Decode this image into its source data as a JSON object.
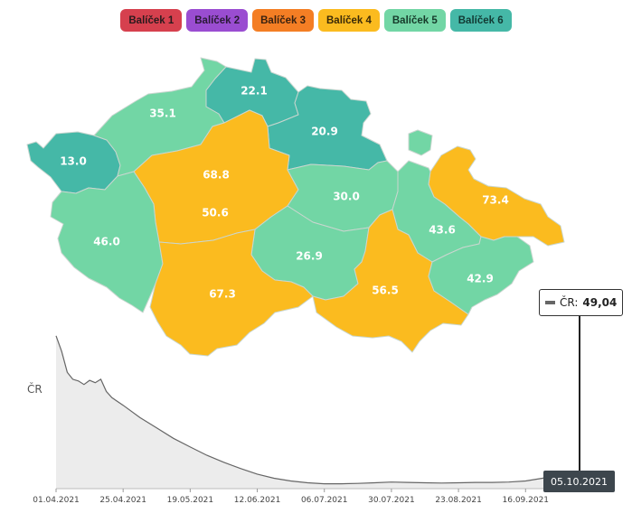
{
  "legend": [
    {
      "label": "Balíček 1",
      "color": "#d6404e",
      "text_color": "#2a1a1d"
    },
    {
      "label": "Balíček 2",
      "color": "#9a4dd1",
      "text_color": "#2a1a36"
    },
    {
      "label": "Balíček 3",
      "color": "#f47e24",
      "text_color": "#3a2210"
    },
    {
      "label": "Balíček 4",
      "color": "#fbbb1f",
      "text_color": "#3a2a08"
    },
    {
      "label": "Balíček 5",
      "color": "#72d6a5",
      "text_color": "#163a2a"
    },
    {
      "label": "Balíček 6",
      "color": "#45b8a7",
      "text_color": "#123a34"
    }
  ],
  "regions": [
    {
      "id": "karlovarsky",
      "value": "13.0",
      "package": 6,
      "color": "#45b8a7"
    },
    {
      "id": "ustecky",
      "value": "35.1",
      "package": 5,
      "color": "#72d6a5"
    },
    {
      "id": "liberecky",
      "value": "22.1",
      "package": 6,
      "color": "#45b8a7"
    },
    {
      "id": "kralovehradecky",
      "value": "20.9",
      "package": 6,
      "color": "#45b8a7"
    },
    {
      "id": "praha",
      "value": "68.8",
      "package": 4,
      "color": "#fbbb1f"
    },
    {
      "id": "stredocesky",
      "value": "50.6",
      "package": 4,
      "color": "#fbbb1f"
    },
    {
      "id": "pardubicky",
      "value": "30.0",
      "package": 5,
      "color": "#72d6a5"
    },
    {
      "id": "moravskoslezsky",
      "value": "73.4",
      "package": 4,
      "color": "#fbbb1f"
    },
    {
      "id": "plzensky",
      "value": "46.0",
      "package": 5,
      "color": "#72d6a5"
    },
    {
      "id": "olomoucky",
      "value": "43.6",
      "package": 5,
      "color": "#72d6a5"
    },
    {
      "id": "vysocina",
      "value": "26.9",
      "package": 5,
      "color": "#72d6a5"
    },
    {
      "id": "jihocesky",
      "value": "67.3",
      "package": 4,
      "color": "#fbbb1f"
    },
    {
      "id": "jihomoravsky",
      "value": "56.5",
      "package": 4,
      "color": "#fbbb1f"
    },
    {
      "id": "zlinsky",
      "value": "42.9",
      "package": 5,
      "color": "#72d6a5"
    }
  ],
  "chart": {
    "series_label": "ČR",
    "x_ticks": [
      "01.04.2021",
      "25.04.2021",
      "19.05.2021",
      "12.06.2021",
      "06.07.2021",
      "30.07.2021",
      "23.08.2021",
      "16.09.2021"
    ],
    "tooltip_label": "ČR:",
    "tooltip_value": "49,04",
    "current_date": "05.10.2021",
    "line_color": "#666666",
    "fill_color": "#ececec"
  },
  "chart_data": {
    "type": "area",
    "series": [
      {
        "name": "ČR",
        "x": [
          "01.04.2021",
          "03.04.2021",
          "05.04.2021",
          "07.04.2021",
          "09.04.2021",
          "11.04.2021",
          "13.04.2021",
          "15.04.2021",
          "17.04.2021",
          "19.04.2021",
          "21.04.2021",
          "25.04.2021",
          "01.05.2021",
          "07.05.2021",
          "13.05.2021",
          "19.05.2021",
          "25.05.2021",
          "31.05.2021",
          "06.06.2021",
          "12.06.2021",
          "18.06.2021",
          "24.06.2021",
          "30.06.2021",
          "06.07.2021",
          "12.07.2021",
          "18.07.2021",
          "24.07.2021",
          "30.07.2021",
          "05.08.2021",
          "11.08.2021",
          "17.08.2021",
          "23.08.2021",
          "29.08.2021",
          "04.09.2021",
          "10.09.2021",
          "16.09.2021",
          "22.09.2021",
          "28.09.2021",
          "05.10.2021"
        ],
        "values": [
          440,
          395,
          335,
          315,
          310,
          300,
          312,
          305,
          315,
          280,
          262,
          240,
          205,
          175,
          145,
          120,
          96,
          76,
          58,
          42,
          30,
          22,
          17,
          14,
          14,
          15,
          17,
          19,
          18,
          17,
          16,
          17,
          18,
          18,
          19,
          22,
          30,
          40,
          49
        ]
      }
    ],
    "ylim": [
      0,
      450
    ]
  }
}
